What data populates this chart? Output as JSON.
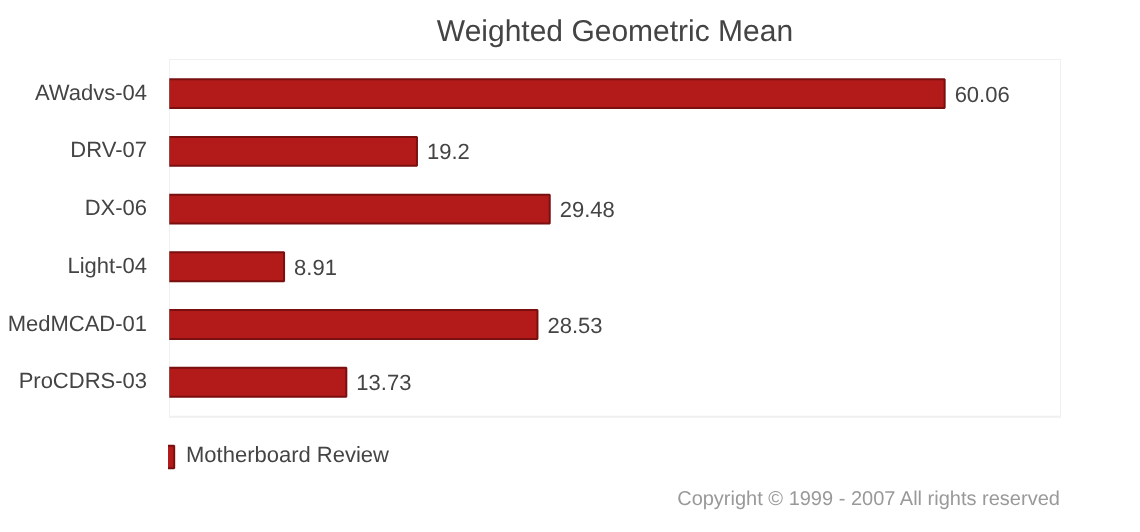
{
  "chart_data": {
    "type": "bar",
    "orientation": "horizontal",
    "title": "Weighted Geometric Mean",
    "categories": [
      "AWadvs-04",
      "DRV-07",
      "DX-06",
      "Light-04",
      "MedMCAD-01",
      "ProCDRS-03"
    ],
    "series": [
      {
        "name": "Motherboard Review",
        "color": "#b31b1b",
        "values": [
          60.06,
          19.2,
          29.48,
          8.91,
          28.53,
          13.73
        ]
      }
    ],
    "data_labels": true,
    "legend": "bottom left",
    "tick_labels": "y",
    "annotations": [
      "Copyright © 1999 - 2007 All rights reserved"
    ]
  }
}
